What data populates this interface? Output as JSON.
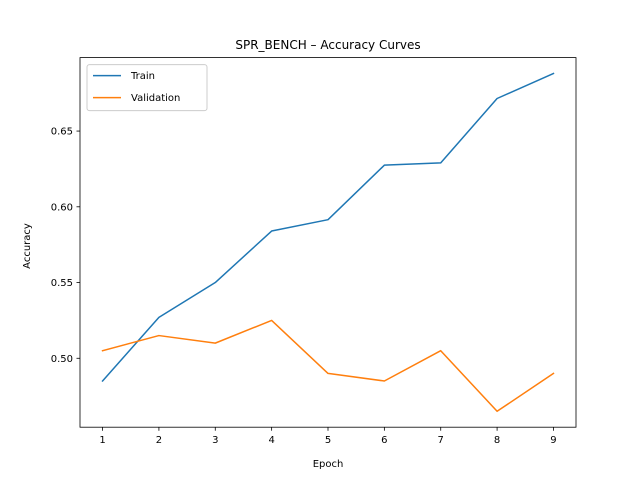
{
  "chart_data": {
    "type": "line",
    "title": "SPR_BENCH – Accuracy Curves",
    "xlabel": "Epoch",
    "ylabel": "Accuracy",
    "x": [
      1,
      2,
      3,
      4,
      5,
      6,
      7,
      8,
      9
    ],
    "xticks": [
      1,
      2,
      3,
      4,
      5,
      6,
      7,
      8,
      9
    ],
    "yticks": [
      0.5,
      0.55,
      0.6,
      0.65
    ],
    "ytick_labels": [
      "0.50",
      "0.55",
      "0.60",
      "0.65"
    ],
    "xlim": [
      0.6,
      9.4
    ],
    "ylim": [
      0.4545,
      0.6985
    ],
    "grid": false,
    "legend": "upper-left",
    "series": [
      {
        "name": "Train",
        "color": "#1f77b4",
        "values": [
          0.485,
          0.527,
          0.55,
          0.584,
          0.5915,
          0.6275,
          0.629,
          0.6715,
          0.688
        ]
      },
      {
        "name": "Validation",
        "color": "#ff7f0e",
        "values": [
          0.505,
          0.515,
          0.51,
          0.525,
          0.49,
          0.485,
          0.505,
          0.465,
          0.49
        ]
      }
    ]
  }
}
